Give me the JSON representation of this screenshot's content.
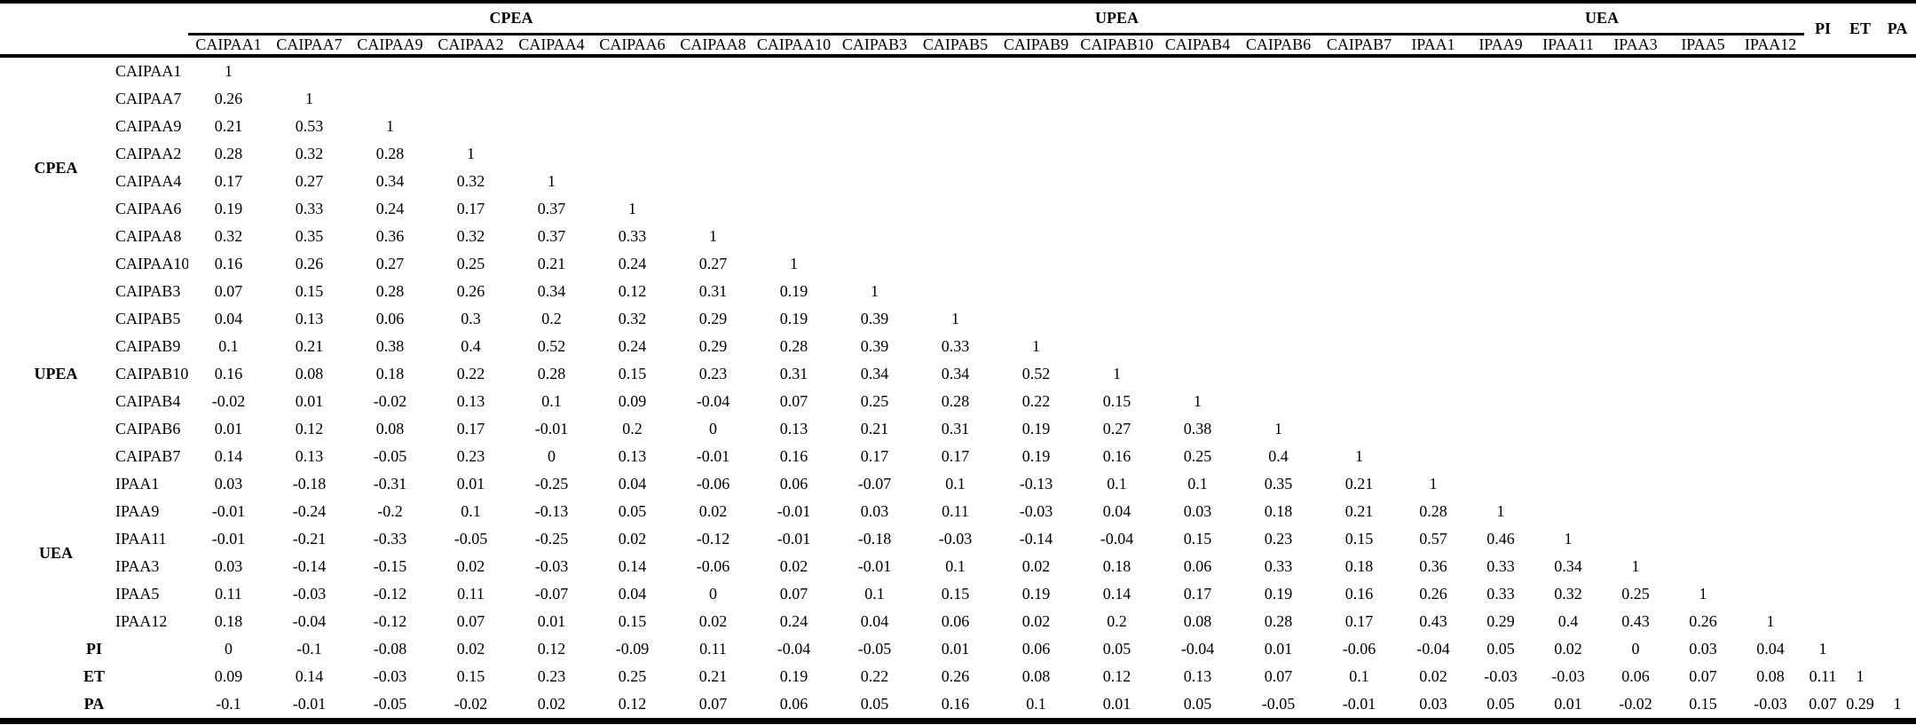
{
  "page": {
    "background_color": "#ffffff",
    "text_color": "#000000"
  },
  "table": {
    "corner_label": "",
    "column_groups": [
      {
        "label": "CPEA",
        "span": 8
      },
      {
        "label": "UPEA",
        "span": 7
      },
      {
        "label": "UEA",
        "span": 6
      }
    ],
    "ungrouped_columns": [
      "PI",
      "ET",
      "PA"
    ],
    "columns": [
      "CAIPAA1",
      "CAIPAA7",
      "CAIPAA9",
      "CAIPAA2",
      "CAIPAA4",
      "CAIPAA6",
      "CAIPAA8",
      "CAIPAA10",
      "CAIPAB3",
      "CAIPAB5",
      "CAIPAB9",
      "CAIPAB10",
      "CAIPAB4",
      "CAIPAB6",
      "CAIPAB7",
      "IPAA1",
      "IPAA9",
      "IPAA11",
      "IPAA3",
      "IPAA5",
      "IPAA12",
      "PI",
      "ET",
      "PA"
    ],
    "row_groups": [
      {
        "label": "CPEA",
        "rows": [
          {
            "label": "CAIPAA1",
            "values": [
              "1"
            ]
          },
          {
            "label": "CAIPAA7",
            "values": [
              "0.26",
              "1"
            ]
          },
          {
            "label": "CAIPAA9",
            "values": [
              "0.21",
              "0.53",
              "1"
            ]
          },
          {
            "label": "CAIPAA2",
            "values": [
              "0.28",
              "0.32",
              "0.28",
              "1"
            ]
          },
          {
            "label": "CAIPAA4",
            "values": [
              "0.17",
              "0.27",
              "0.34",
              "0.32",
              "1"
            ]
          },
          {
            "label": "CAIPAA6",
            "values": [
              "0.19",
              "0.33",
              "0.24",
              "0.17",
              "0.37",
              "1"
            ]
          },
          {
            "label": "CAIPAA8",
            "values": [
              "0.32",
              "0.35",
              "0.36",
              "0.32",
              "0.37",
              "0.33",
              "1"
            ]
          },
          {
            "label": "CAIPAA10",
            "values": [
              "0.16",
              "0.26",
              "0.27",
              "0.25",
              "0.21",
              "0.24",
              "0.27",
              "1"
            ]
          }
        ]
      },
      {
        "label": "UPEA",
        "rows": [
          {
            "label": "CAIPAB3",
            "values": [
              "0.07",
              "0.15",
              "0.28",
              "0.26",
              "0.34",
              "0.12",
              "0.31",
              "0.19",
              "1"
            ]
          },
          {
            "label": "CAIPAB5",
            "values": [
              "0.04",
              "0.13",
              "0.06",
              "0.3",
              "0.2",
              "0.32",
              "0.29",
              "0.19",
              "0.39",
              "1"
            ]
          },
          {
            "label": "CAIPAB9",
            "values": [
              "0.1",
              "0.21",
              "0.38",
              "0.4",
              "0.52",
              "0.24",
              "0.29",
              "0.28",
              "0.39",
              "0.33",
              "1"
            ]
          },
          {
            "label": "CAIPAB10",
            "values": [
              "0.16",
              "0.08",
              "0.18",
              "0.22",
              "0.28",
              "0.15",
              "0.23",
              "0.31",
              "0.34",
              "0.34",
              "0.52",
              "1"
            ]
          },
          {
            "label": "CAIPAB4",
            "values": [
              "-0.02",
              "0.01",
              "-0.02",
              "0.13",
              "0.1",
              "0.09",
              "-0.04",
              "0.07",
              "0.25",
              "0.28",
              "0.22",
              "0.15",
              "1"
            ]
          },
          {
            "label": "CAIPAB6",
            "values": [
              "0.01",
              "0.12",
              "0.08",
              "0.17",
              "-0.01",
              "0.2",
              "0",
              "0.13",
              "0.21",
              "0.31",
              "0.19",
              "0.27",
              "0.38",
              "1"
            ]
          },
          {
            "label": "CAIPAB7",
            "values": [
              "0.14",
              "0.13",
              "-0.05",
              "0.23",
              "0",
              "0.13",
              "-0.01",
              "0.16",
              "0.17",
              "0.17",
              "0.19",
              "0.16",
              "0.25",
              "0.4",
              "1"
            ]
          }
        ]
      },
      {
        "label": "UEA",
        "rows": [
          {
            "label": "IPAA1",
            "values": [
              "0.03",
              "-0.18",
              "-0.31",
              "0.01",
              "-0.25",
              "0.04",
              "-0.06",
              "0.06",
              "-0.07",
              "0.1",
              "-0.13",
              "0.1",
              "0.1",
              "0.35",
              "0.21",
              "1"
            ]
          },
          {
            "label": "IPAA9",
            "values": [
              "-0.01",
              "-0.24",
              "-0.2",
              "0.1",
              "-0.13",
              "0.05",
              "0.02",
              "-0.01",
              "0.03",
              "0.11",
              "-0.03",
              "0.04",
              "0.03",
              "0.18",
              "0.21",
              "0.28",
              "1"
            ]
          },
          {
            "label": "IPAA11",
            "values": [
              "-0.01",
              "-0.21",
              "-0.33",
              "-0.05",
              "-0.25",
              "0.02",
              "-0.12",
              "-0.01",
              "-0.18",
              "-0.03",
              "-0.14",
              "-0.04",
              "0.15",
              "0.23",
              "0.15",
              "0.57",
              "0.46",
              "1"
            ]
          },
          {
            "label": "IPAA3",
            "values": [
              "0.03",
              "-0.14",
              "-0.15",
              "0.02",
              "-0.03",
              "0.14",
              "-0.06",
              "0.02",
              "-0.01",
              "0.1",
              "0.02",
              "0.18",
              "0.06",
              "0.33",
              "0.18",
              "0.36",
              "0.33",
              "0.34",
              "1"
            ]
          },
          {
            "label": "IPAA5",
            "values": [
              "0.11",
              "-0.03",
              "-0.12",
              "0.11",
              "-0.07",
              "0.04",
              "0",
              "0.07",
              "0.1",
              "0.15",
              "0.19",
              "0.14",
              "0.17",
              "0.19",
              "0.16",
              "0.26",
              "0.33",
              "0.32",
              "0.25",
              "1"
            ]
          },
          {
            "label": "IPAA12",
            "values": [
              "0.18",
              "-0.04",
              "-0.12",
              "0.07",
              "0.01",
              "0.15",
              "0.02",
              "0.24",
              "0.04",
              "0.06",
              "0.02",
              "0.2",
              "0.08",
              "0.28",
              "0.17",
              "0.43",
              "0.29",
              "0.4",
              "0.43",
              "0.26",
              "1"
            ]
          }
        ]
      },
      {
        "label": "",
        "rows": [
          {
            "label": "PI",
            "values": [
              "0",
              "-0.1",
              "-0.08",
              "0.02",
              "0.12",
              "-0.09",
              "0.11",
              "-0.04",
              "-0.05",
              "0.01",
              "0.06",
              "0.05",
              "-0.04",
              "0.01",
              "-0.06",
              "-0.04",
              "0.05",
              "0.02",
              "0",
              "0.03",
              "0.04",
              "1"
            ]
          },
          {
            "label": "ET",
            "values": [
              "0.09",
              "0.14",
              "-0.03",
              "0.15",
              "0.23",
              "0.25",
              "0.21",
              "0.19",
              "0.22",
              "0.26",
              "0.08",
              "0.12",
              "0.13",
              "0.07",
              "0.1",
              "0.02",
              "-0.03",
              "-0.03",
              "0.06",
              "0.07",
              "0.08",
              "0.11",
              "1"
            ]
          },
          {
            "label": "PA",
            "values": [
              "-0.1",
              "-0.01",
              "-0.05",
              "-0.02",
              "0.02",
              "0.12",
              "0.07",
              "0.06",
              "0.05",
              "0.16",
              "0.1",
              "0.01",
              "0.05",
              "-0.05",
              "-0.01",
              "0.03",
              "0.05",
              "0.01",
              "-0.02",
              "0.15",
              "-0.03",
              "0.07",
              "0.29",
              "1"
            ]
          }
        ]
      }
    ]
  }
}
